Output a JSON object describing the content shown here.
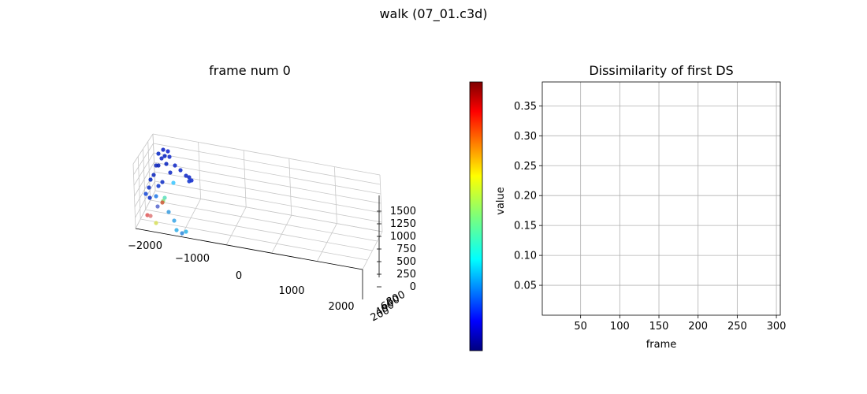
{
  "figure": {
    "title": "walk (07_01.c3d)"
  },
  "chart_data": [
    {
      "type": "scatter3d",
      "title": "frame num 0",
      "x_ticks": [
        "−2000",
        "−1000",
        "0",
        "1000",
        "2000"
      ],
      "y_ticks": [
        "800",
        "600",
        "400",
        "200"
      ],
      "z_ticks": [
        "0",
        "250",
        "500",
        "750",
        "1000",
        "1250",
        "1500"
      ],
      "grid": true,
      "colormap": "jet"
    },
    {
      "type": "colorbar",
      "label": "value",
      "colormap": "jet",
      "range": [
        0,
        0.39
      ]
    },
    {
      "type": "line",
      "title": "Dissimilarity of first DS",
      "xlabel": "frame",
      "ylabel": "",
      "xlim": [
        1,
        305
      ],
      "ylim": [
        0,
        0.39
      ],
      "x_ticks": [
        50,
        100,
        150,
        200,
        250,
        300
      ],
      "y_ticks": [
        0.05,
        0.1,
        0.15,
        0.2,
        0.25,
        0.3,
        0.35
      ],
      "y_tick_labels": [
        "0.05",
        "0.10",
        "0.15",
        "0.20",
        "0.25",
        "0.30",
        "0.35"
      ],
      "series": [],
      "grid": true
    }
  ]
}
